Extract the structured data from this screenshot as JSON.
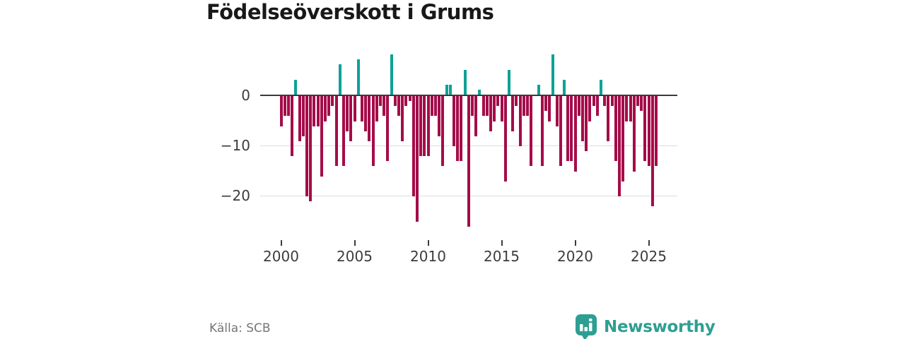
{
  "title": "Födelseöverskott i Grums",
  "footer": {
    "source_label": "Källa: SCB"
  },
  "logo": {
    "text": "Newsworthy",
    "color": "#2d9f92"
  },
  "chart_data": {
    "type": "bar",
    "title": "Födelseöverskott i Grums",
    "frequency": "quarterly",
    "start": "2000 Q1",
    "end": "2025 Q3",
    "xlabel": "",
    "ylabel": "",
    "grid": "horizontal-only",
    "legend_position": "none",
    "ylim": [
      -27,
      9
    ],
    "y_ticks": [
      0,
      -10,
      -20
    ],
    "y_tick_labels": [
      "0",
      "−10",
      "−20"
    ],
    "x_tick_years": [
      2000,
      2005,
      2010,
      2015,
      2020,
      2025
    ],
    "x_tick_labels": [
      "2000",
      "2005",
      "2010",
      "2015",
      "2020",
      "2025"
    ],
    "positive_color": "#0da296",
    "negative_color": "#a50c49",
    "values": [
      -6,
      -4,
      -4,
      -12,
      3,
      -9,
      -8,
      -20,
      -21,
      -6,
      -6,
      -16,
      -5,
      -4,
      -2,
      -14,
      6,
      -14,
      -7,
      -9,
      -5,
      7,
      -5,
      -7,
      -9,
      -14,
      -5,
      -2,
      -4,
      -13,
      8,
      -2,
      -4,
      -9,
      -2,
      -1,
      -20,
      -25,
      -12,
      -12,
      -12,
      -4,
      -4,
      -8,
      -14,
      2,
      2,
      -10,
      -13,
      -13,
      5,
      -26,
      -4,
      -8,
      1,
      -4,
      -4,
      -7,
      -5,
      -2,
      -5,
      -17,
      5,
      -7,
      -2,
      -10,
      -4,
      -4,
      -14,
      0,
      2,
      -14,
      -3,
      -5,
      8,
      -6,
      -14,
      3,
      -13,
      -13,
      -15,
      -4,
      -9,
      -11,
      -5,
      -2,
      -4,
      3,
      -2,
      -9,
      -2,
      -13,
      -20,
      -17,
      -5,
      -5,
      -15,
      -2,
      -3,
      -13,
      -14,
      -22,
      -14
    ]
  }
}
